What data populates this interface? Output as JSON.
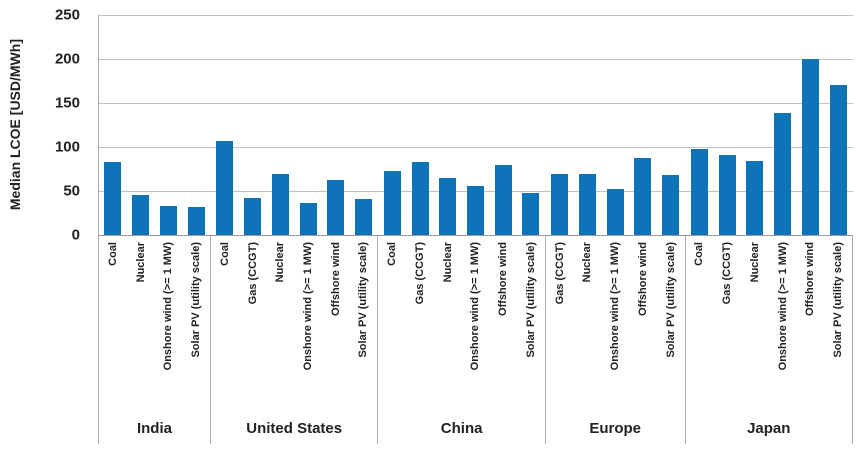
{
  "chart_data": {
    "type": "bar",
    "title": "",
    "ylabel": "Median LCOE [USD/MWh]",
    "xlabel": "",
    "ylim": [
      0,
      250
    ],
    "yticks": [
      250,
      200,
      150,
      100,
      50,
      0
    ],
    "grid": "horizontal",
    "legend": "none",
    "bar_color": "#0e73b9",
    "grid_color": "#c3c3c3",
    "separator_color": "#adadad",
    "groups": [
      {
        "name": "India",
        "bars": [
          {
            "label": "Coal",
            "value": 83
          },
          {
            "label": "Nuclear",
            "value": 45
          },
          {
            "label": "Onshore wind (>= 1 MW)",
            "value": 33
          },
          {
            "label": "Solar PV (utility scale)",
            "value": 32
          }
        ]
      },
      {
        "name": "United States",
        "bars": [
          {
            "label": "Coal",
            "value": 107
          },
          {
            "label": "Gas (CCGT)",
            "value": 42
          },
          {
            "label": "Nuclear",
            "value": 69
          },
          {
            "label": "Onshore wind (>= 1 MW)",
            "value": 36
          },
          {
            "label": "Offshore wind",
            "value": 63
          },
          {
            "label": "Solar PV (utility scale)",
            "value": 41
          }
        ]
      },
      {
        "name": "China",
        "bars": [
          {
            "label": "Coal",
            "value": 73
          },
          {
            "label": "Gas (CCGT)",
            "value": 83
          },
          {
            "label": "Nuclear",
            "value": 65
          },
          {
            "label": "Onshore wind (>= 1 MW)",
            "value": 56
          },
          {
            "label": "Offshore wind",
            "value": 80
          },
          {
            "label": "Solar PV (utility scale)",
            "value": 48
          }
        ]
      },
      {
        "name": "Europe",
        "bars": [
          {
            "label": "Gas (CCGT)",
            "value": 69
          },
          {
            "label": "Nuclear",
            "value": 69
          },
          {
            "label": "Onshore wind (>= 1 MW)",
            "value": 52
          },
          {
            "label": "Offshore wind",
            "value": 88
          },
          {
            "label": "Solar PV (utility scale)",
            "value": 68
          }
        ]
      },
      {
        "name": "Japan",
        "bars": [
          {
            "label": "Coal",
            "value": 98
          },
          {
            "label": "Gas (CCGT)",
            "value": 91
          },
          {
            "label": "Nuclear",
            "value": 84
          },
          {
            "label": "Onshore wind (>= 1 MW)",
            "value": 139
          },
          {
            "label": "Offshore wind",
            "value": 200
          },
          {
            "label": "Solar PV (utility scale)",
            "value": 171
          }
        ]
      }
    ]
  }
}
